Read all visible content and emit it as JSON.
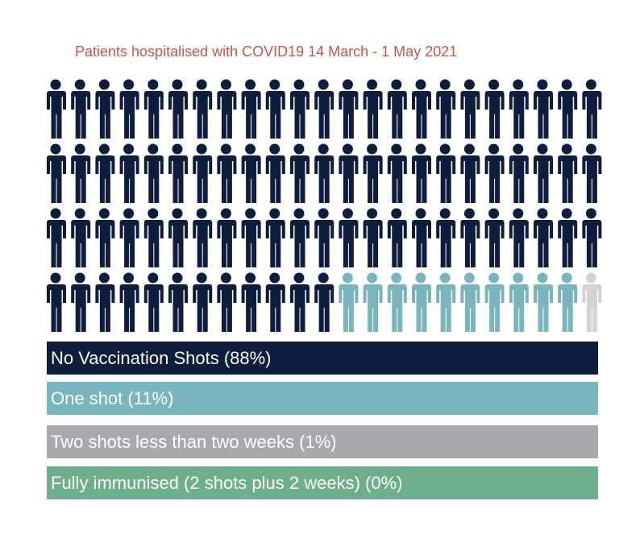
{
  "chart_data": {
    "type": "pictogram",
    "title": "Patients hospitalised with COVID19 14 March - 1 May 2021",
    "total_icons": 92,
    "categories": [
      {
        "label": "No Vaccination Shots (88%)",
        "percent": 88,
        "icons": 81,
        "color": "#0d1d3d"
      },
      {
        "label": "One shot (11%)",
        "percent": 11,
        "icons": 10,
        "color": "#79b5bd"
      },
      {
        "label": "Two shots less than two weeks (1%)",
        "percent": 1,
        "icons": 1,
        "color": "#d2d3d6"
      },
      {
        "label": "Fully immunised (2 shots plus 2 weeks) (0%)",
        "percent": 0,
        "icons": 0,
        "color": "#6fae8c"
      }
    ],
    "legend_colors": [
      "#0d1d3d",
      "#79b5bd",
      "#a8a9ad",
      "#6fae8c"
    ],
    "title_color": "#c8554a"
  }
}
